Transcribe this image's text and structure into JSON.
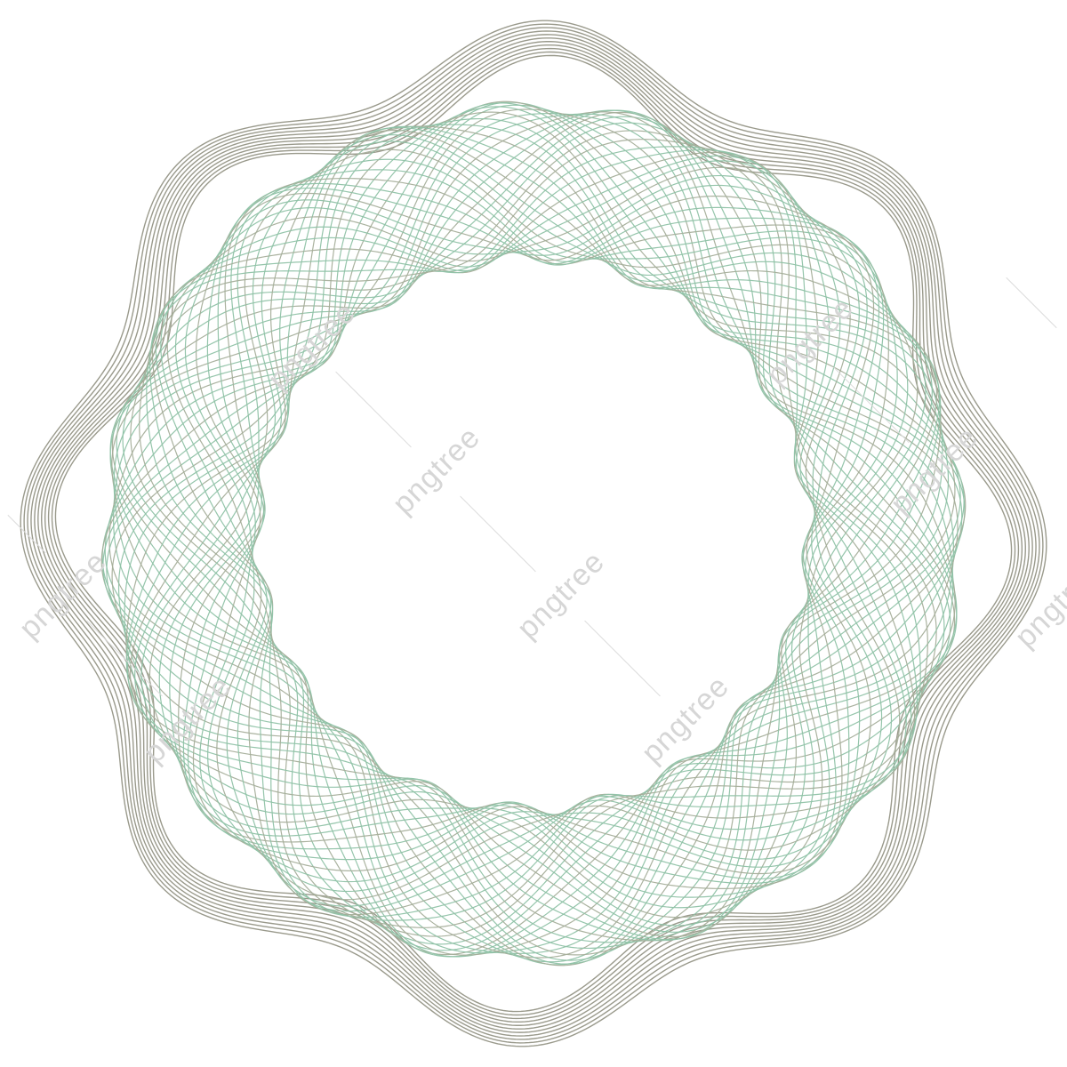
{
  "ornament": {
    "outer_color": "#9a9a8c",
    "inner_color": "#8fc2a6",
    "band_color": "#a5ae9a",
    "background": "#ffffff",
    "lobes": 8
  },
  "watermark": {
    "text": "pngtree",
    "color": "#d6d6d6"
  }
}
